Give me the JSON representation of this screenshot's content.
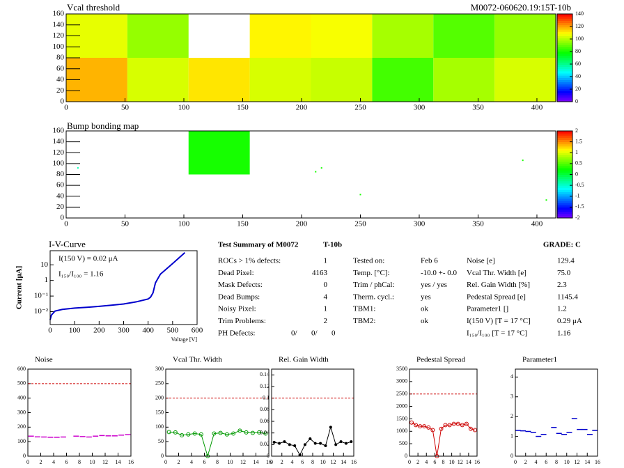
{
  "header": {
    "left": "Vcal threshold",
    "right": "M0072-060620.19:15T-10b"
  },
  "chart_data": [
    {
      "type": "heatmap",
      "title": "Vcal threshold",
      "xedges": [
        0,
        52,
        104,
        156,
        208,
        260,
        312,
        364,
        416
      ],
      "yedges": [
        0,
        80,
        160
      ],
      "values": [
        [
          118,
          104,
          112,
          104,
          102,
          86,
          98,
          104
        ],
        [
          106,
          96,
          null,
          110,
          108,
          98,
          88,
          96
        ]
      ],
      "xlim": [
        0,
        416
      ],
      "ylim": [
        0,
        160
      ],
      "xticks": [
        0,
        50,
        100,
        150,
        200,
        250,
        300,
        350,
        400
      ],
      "yticks": [
        0,
        20,
        40,
        60,
        80,
        100,
        120,
        140,
        160
      ],
      "zlim": [
        0,
        140
      ],
      "zticks": [
        0,
        20,
        40,
        60,
        80,
        100,
        120,
        140
      ]
    },
    {
      "type": "bumpmap",
      "title": "Bump bonding map",
      "blocks": [
        {
          "x": [
            104,
            156
          ],
          "y": [
            80,
            160
          ],
          "value": 0.3
        }
      ],
      "points": {
        "x": [
          10,
          212,
          217,
          250,
          388,
          408
        ],
        "y": [
          92,
          85,
          92,
          43,
          106,
          33
        ],
        "values": [
          -0.4,
          0.3,
          0.3,
          0.3,
          0.3,
          0.3
        ]
      },
      "xlim": [
        0,
        416
      ],
      "ylim": [
        0,
        160
      ],
      "xticks": [
        0,
        50,
        100,
        150,
        200,
        250,
        300,
        350,
        400
      ],
      "yticks": [
        0,
        20,
        40,
        60,
        80,
        100,
        120,
        140,
        160
      ],
      "zlim": [
        -2,
        2
      ],
      "zticks": [
        -2,
        -1.5,
        -1,
        -0.5,
        0,
        0.5,
        1,
        1.5,
        2
      ]
    },
    {
      "type": "line",
      "log_y": true,
      "title": "I-V-Curve",
      "xlabel": "Voltage [V]",
      "ylabel": "Current [μA]",
      "color": "#0000cc",
      "annotations": [
        "I(150 V) = 0.02 μA",
        "I₁₅₀/I₁₀₀ =  1.16"
      ],
      "x": [
        0,
        5,
        20,
        50,
        100,
        150,
        200,
        250,
        300,
        350,
        400,
        410,
        420,
        430,
        450,
        500,
        550
      ],
      "values": [
        0.003,
        0.006,
        0.011,
        0.014,
        0.017,
        0.019,
        0.022,
        0.026,
        0.031,
        0.042,
        0.065,
        0.085,
        0.16,
        0.7,
        2.5,
        12,
        60
      ],
      "xlim": [
        0,
        600
      ],
      "ylim": [
        0.0015,
        80
      ],
      "xticks": [
        0,
        100,
        200,
        300,
        400,
        500,
        600
      ],
      "yticks": [
        {
          "value": 0.01,
          "label": "10⁻²"
        },
        {
          "value": 0.1,
          "label": "10⁻¹"
        },
        1,
        10
      ]
    },
    {
      "type": "roc",
      "title": "Noise",
      "color": "#cc00cc",
      "marker": "none",
      "limit": 500,
      "x": [
        0,
        1,
        2,
        3,
        4,
        5,
        6,
        7,
        8,
        9,
        10,
        11,
        12,
        13,
        14,
        15
      ],
      "values": [
        138,
        133,
        132,
        130,
        130,
        132,
        null,
        138,
        135,
        132,
        138,
        142,
        140,
        140,
        145,
        148
      ],
      "xlim": [
        0,
        16
      ],
      "ylim": [
        0,
        600
      ],
      "xticks": [
        0,
        2,
        4,
        6,
        8,
        10,
        12,
        14,
        16
      ],
      "yticks": [
        0,
        100,
        200,
        300,
        400,
        500,
        600
      ]
    },
    {
      "type": "roc",
      "title": "Vcal Thr. Width",
      "color": "#009900",
      "marker": "circle",
      "limit": 200,
      "x": [
        0,
        1,
        2,
        3,
        4,
        5,
        6,
        7,
        8,
        9,
        10,
        11,
        12,
        13,
        14,
        15
      ],
      "values": [
        83,
        82,
        72,
        75,
        78,
        75,
        0,
        78,
        80,
        75,
        78,
        88,
        82,
        80,
        82,
        78
      ],
      "xlim": [
        0,
        16
      ],
      "ylim": [
        0,
        300
      ],
      "xticks": [
        0,
        2,
        4,
        6,
        8,
        10,
        12,
        14,
        16
      ],
      "yticks": [
        0,
        50,
        100,
        150,
        200,
        250,
        300
      ]
    },
    {
      "type": "roc",
      "title": "Rel. Gain Width",
      "color": "#000000",
      "marker": "dot",
      "limit": 0.1,
      "x": [
        0,
        1,
        2,
        3,
        4,
        5,
        6,
        7,
        8,
        9,
        10,
        11,
        12,
        13,
        14,
        15
      ],
      "values": [
        0.024,
        0.022,
        0.025,
        0.02,
        0.018,
        0.002,
        0.02,
        0.03,
        0.022,
        0.022,
        0.018,
        0.05,
        0.02,
        0.025,
        0.022,
        0.025
      ],
      "xlim": [
        0,
        16
      ],
      "ylim": [
        0,
        0.15
      ],
      "xticks": [
        0,
        2,
        4,
        6,
        8,
        10,
        12,
        14,
        16
      ],
      "yticks": [
        0,
        0.02,
        0.04,
        0.06,
        0.08,
        0.1,
        0.12,
        0.14
      ]
    },
    {
      "type": "roc",
      "title": "Pedestal Spread",
      "color": "#cc0000",
      "marker": "circle",
      "limit": 2500,
      "x": [
        0,
        1,
        2,
        3,
        4,
        5,
        6,
        7,
        8,
        9,
        10,
        11,
        12,
        13,
        14,
        15
      ],
      "values": [
        1350,
        1250,
        1200,
        1200,
        1150,
        1050,
        0,
        1100,
        1250,
        1250,
        1300,
        1300,
        1250,
        1300,
        1100,
        1050
      ],
      "xlim": [
        0,
        16
      ],
      "ylim": [
        0,
        3500
      ],
      "xticks": [
        0,
        2,
        4,
        6,
        8,
        10,
        12,
        14,
        16
      ],
      "yticks": [
        0,
        500,
        1000,
        1500,
        2000,
        2500,
        3000,
        3500
      ]
    },
    {
      "type": "roc",
      "title": "Parameter1",
      "color": "#0000cc",
      "marker": "none",
      "x": [
        0,
        1,
        2,
        3,
        4,
        5,
        6,
        7,
        8,
        9,
        10,
        11,
        12,
        13,
        14,
        15
      ],
      "values": [
        1.3,
        1.28,
        1.25,
        1.2,
        1.0,
        1.1,
        null,
        1.45,
        1.15,
        1.1,
        1.2,
        1.9,
        1.35,
        1.35,
        1.1,
        1.3
      ],
      "xlim": [
        0,
        16
      ],
      "ylim": [
        0,
        4.4
      ],
      "xticks": [
        0,
        2,
        4,
        6,
        8,
        10,
        12,
        14,
        16
      ],
      "yticks": [
        0,
        1,
        2,
        3,
        4
      ]
    }
  ],
  "summary": {
    "title": "Test Summary of M0072",
    "tier": "T-10b",
    "grade": "GRADE:  C",
    "left": [
      [
        "ROCs > 1% defects:",
        "1"
      ],
      [
        "Dead Pixel:",
        "4163"
      ],
      [
        "Mask Defects:",
        "0"
      ],
      [
        "Dead Bumps:",
        "4"
      ],
      [
        "Noisy Pixel:",
        "1"
      ],
      [
        "Trim Problems:",
        "2"
      ]
    ],
    "ph": {
      "label": "PH Defects:",
      "values": [
        "0/",
        "0/",
        "0"
      ]
    },
    "middle": [
      [
        "Tested on:",
        "Feb 6"
      ],
      [
        "Temp. [°C]:",
        "-10.0 +- 0.0"
      ],
      [
        "Trim / phCal:",
        "yes / yes"
      ],
      [
        "Therm. cycl.:",
        "yes"
      ],
      [
        "TBM1:",
        "ok"
      ],
      [
        "TBM2:",
        "ok"
      ]
    ],
    "right": [
      [
        "Noise [e]",
        "129.4"
      ],
      [
        "Vcal Thr. Width [e]",
        "75.0"
      ],
      [
        "Rel. Gain Width [%]",
        "2.3"
      ],
      [
        "Pedestal Spread [e]",
        "1145.4"
      ],
      [
        "Parameter1 []",
        "1.2"
      ],
      [
        "I(150 V) [T = 17 °C]",
        "0.29 μA"
      ],
      [
        "I₁₅₀/I₁₀₀  [T = 17 °C]",
        "1.16"
      ]
    ]
  }
}
